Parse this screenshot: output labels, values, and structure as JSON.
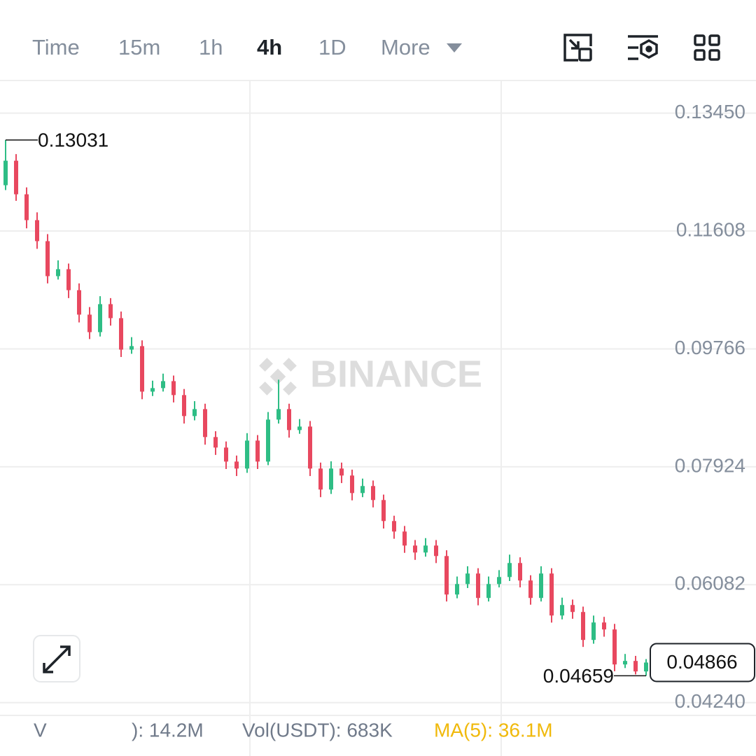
{
  "toolbar": {
    "tabs": [
      "Time",
      "15m",
      "1h",
      "4h",
      "1D",
      "More"
    ]
  },
  "chart_data": {
    "type": "candlestick",
    "watermark": "BINANCE",
    "up_color": "#2ebd85",
    "down_color": "#e8485f",
    "open": [
      0.12324,
      0.12707,
      0.12182,
      0.11778,
      0.1145,
      0.10903,
      0.11012,
      0.10684,
      0.10302,
      0.10028,
      0.10466,
      0.10247,
      0.09755,
      0.0981,
      0.09099,
      0.09154,
      0.09263,
      0.09045,
      0.08717,
      0.08826,
      0.08389,
      0.08225,
      0.08006,
      0.07897,
      0.08334,
      0.08006,
      0.08662,
      0.08826,
      0.08498,
      0.08553,
      0.07897,
      0.07569,
      0.07897,
      0.07788,
      0.07514,
      0.07624,
      0.07405,
      0.07077,
      0.06913,
      0.06694,
      0.06585,
      0.06694,
      0.0653,
      0.05929,
      0.06093,
      0.06257,
      0.05875,
      0.06093,
      0.06202,
      0.06421,
      0.06148,
      0.05875,
      0.06257,
      0.05601,
      0.05765,
      0.05656,
      0.05219,
      0.05492,
      0.05383,
      0.04836,
      0.04891,
      0.04727
    ],
    "high": [
      0.13031,
      0.1281,
      0.1229,
      0.119,
      0.1156,
      0.1115,
      0.111,
      0.1079,
      0.1042,
      0.1059,
      0.1056,
      0.1035,
      0.0995,
      0.099,
      0.0927,
      0.0938,
      0.0935,
      0.0914,
      0.0895,
      0.0891,
      0.0848,
      0.0832,
      0.081,
      0.0845,
      0.0842,
      0.0878,
      0.09285,
      0.0891,
      0.0867,
      0.0864,
      0.0799,
      0.0801,
      0.0799,
      0.0788,
      0.0774,
      0.0771,
      0.0749,
      0.0716,
      0.07,
      0.0678,
      0.0681,
      0.0678,
      0.0662,
      0.0621,
      0.0637,
      0.0634,
      0.0621,
      0.0631,
      0.06552,
      0.0651,
      0.0623,
      0.0637,
      0.0634,
      0.0588,
      0.0585,
      0.0574,
      0.056,
      0.0558,
      0.0547,
      0.05,
      0.0497,
      0.0492
    ],
    "low": [
      0.12248,
      0.1208,
      0.1165,
      0.1133,
      0.1079,
      0.1085,
      0.1056,
      0.1018,
      0.0992,
      0.0996,
      0.1013,
      0.0964,
      0.0969,
      0.0898,
      0.0903,
      0.091,
      0.0893,
      0.086,
      0.0865,
      0.0827,
      0.0811,
      0.0789,
      0.0778,
      0.0783,
      0.0789,
      0.0795,
      0.086,
      0.0838,
      0.0844,
      0.0778,
      0.0745,
      0.075,
      0.0767,
      0.074,
      0.0745,
      0.0729,
      0.0696,
      0.068,
      0.0658,
      0.0647,
      0.0652,
      0.0642,
      0.0582,
      0.0587,
      0.0603,
      0.0576,
      0.0582,
      0.0604,
      0.0614,
      0.0604,
      0.0577,
      0.0582,
      0.0549,
      0.0554,
      0.0555,
      0.0511,
      0.0516,
      0.0527,
      0.0473,
      0.0478,
      0.0468,
      0.04659
    ],
    "close": [
      0.12707,
      0.12182,
      0.11778,
      0.1145,
      0.10903,
      0.11012,
      0.10684,
      0.10302,
      0.10028,
      0.10466,
      0.10247,
      0.09755,
      0.0981,
      0.09099,
      0.09154,
      0.09263,
      0.09045,
      0.08717,
      0.08826,
      0.08389,
      0.08225,
      0.08006,
      0.07897,
      0.08334,
      0.08006,
      0.08662,
      0.08826,
      0.08498,
      0.08553,
      0.07897,
      0.07569,
      0.07897,
      0.07788,
      0.07514,
      0.07624,
      0.07405,
      0.07077,
      0.06913,
      0.06694,
      0.06585,
      0.06694,
      0.0653,
      0.05929,
      0.06093,
      0.06257,
      0.05875,
      0.06093,
      0.06202,
      0.06421,
      0.06148,
      0.05875,
      0.06257,
      0.05601,
      0.05765,
      0.05656,
      0.05219,
      0.05492,
      0.05383,
      0.04836,
      0.04891,
      0.04727,
      0.04866
    ],
    "ylim": [
      0.0404,
      0.1396
    ],
    "yticks": [
      {
        "value": 0.1345,
        "label": "0.13450"
      },
      0.11608,
      0.09766,
      0.07924,
      0.06082,
      {
        "value": 0.0424,
        "label": "0.04240"
      }
    ],
    "grid": true
  },
  "indicators": [
    "V",
    "): 14.2M",
    "Vol(USDT): 683K",
    "MA(5): 36.1M"
  ]
}
